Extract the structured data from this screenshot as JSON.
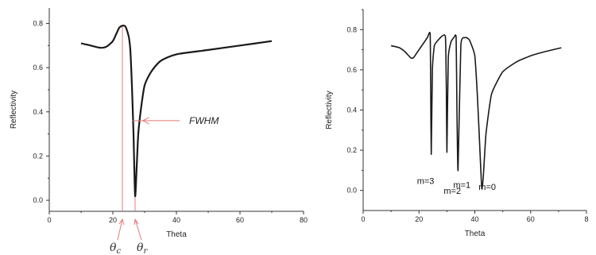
{
  "chart_data": [
    {
      "type": "line",
      "xlabel": "Theta",
      "ylabel": "Reflectivity",
      "xlim": [
        0,
        80
      ],
      "ylim": [
        -0.05,
        0.87
      ],
      "x_ticks": [
        "0",
        "20",
        "40",
        "60",
        "80"
      ],
      "y_ticks": [
        "0.0",
        "0.2",
        "0.4",
        "0.6",
        "0.8"
      ],
      "grid": false,
      "series": [
        {
          "x": [
            10,
            13,
            16,
            18,
            20,
            21,
            22,
            23,
            24,
            25,
            25.5,
            26,
            26.5,
            27,
            27.5,
            28,
            29,
            30,
            32,
            35,
            40,
            50,
            60,
            70
          ],
          "y": [
            0.71,
            0.7,
            0.69,
            0.695,
            0.72,
            0.75,
            0.78,
            0.79,
            0.785,
            0.74,
            0.68,
            0.52,
            0.3,
            0.02,
            0.15,
            0.3,
            0.43,
            0.52,
            0.58,
            0.63,
            0.66,
            0.68,
            0.7,
            0.72
          ]
        }
      ],
      "annotations": {
        "fwhm_label": "FWHM",
        "theta_c": {
          "symbol": "θ",
          "subscript": "c",
          "x": 23
        },
        "theta_r": {
          "symbol": "θ",
          "subscript": "r",
          "x": 27
        }
      }
    },
    {
      "type": "line",
      "xlabel": "Theta",
      "ylabel": "Reflectivity",
      "xlim": [
        0,
        80
      ],
      "ylim": [
        -0.1,
        0.9
      ],
      "x_ticks": [
        "0",
        "20",
        "40",
        "60",
        "8"
      ],
      "y_ticks": [
        "0.0",
        "0.2",
        "0.4",
        "0.6",
        "0.8"
      ],
      "grid": false,
      "series": [
        {
          "x": [
            10,
            13,
            15,
            17,
            18,
            20,
            22,
            23,
            24,
            24.2,
            24.4,
            24.8,
            25.5,
            27,
            28.5,
            29.5,
            29.8,
            30,
            30.5,
            31.5,
            32.5,
            33.3,
            33.6,
            34,
            35,
            36.5,
            38,
            40,
            41,
            42,
            42.5,
            43,
            44,
            46,
            50,
            55,
            60,
            65,
            71
          ],
          "y": [
            0.72,
            0.71,
            0.69,
            0.66,
            0.66,
            0.7,
            0.74,
            0.76,
            0.78,
            0.5,
            0.18,
            0.6,
            0.72,
            0.75,
            0.77,
            0.76,
            0.5,
            0.19,
            0.66,
            0.74,
            0.76,
            0.76,
            0.4,
            0.1,
            0.72,
            0.76,
            0.75,
            0.67,
            0.45,
            0.15,
            0.01,
            0.06,
            0.28,
            0.48,
            0.59,
            0.64,
            0.67,
            0.69,
            0.71
          ]
        }
      ],
      "annotations": [
        {
          "text": "m=3",
          "x": 24.4
        },
        {
          "text": "m=2",
          "x": 30
        },
        {
          "text": "m=1",
          "x": 34
        },
        {
          "text": "m=0",
          "x": 42.5
        }
      ]
    }
  ]
}
